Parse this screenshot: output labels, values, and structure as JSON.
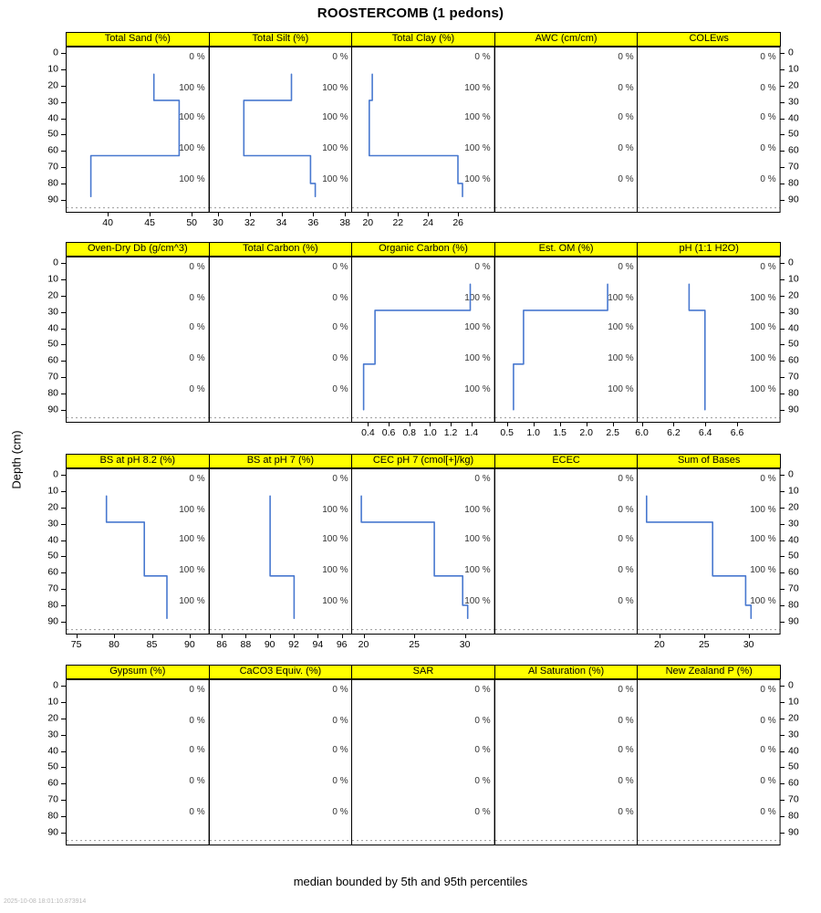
{
  "title": "ROOSTERCOMB (1 pedons)",
  "y_axis_label": "Depth (cm)",
  "caption": "median bounded by 5th and 95th percentiles",
  "timestamp": "2025-10-08 18:01:10.873914",
  "colors": {
    "strip_bg": "#FFFF00",
    "line": "#4878CF",
    "border": "#000000",
    "annotation": "#333333",
    "grid_dashed": "#999999"
  },
  "depth_ticks": [
    0,
    10,
    20,
    30,
    40,
    50,
    60,
    70,
    80,
    90
  ],
  "chart_data": {
    "type": "line",
    "subtype": "step-depth-profile",
    "layout": {
      "rows": 4,
      "cols": 5
    },
    "ylabel": "Depth (cm)",
    "depth_range": [
      -4,
      98
    ],
    "annotation_depths": [
      2,
      21,
      39,
      58,
      77
    ],
    "panels": [
      {
        "title": "Total Sand (%)",
        "xlim": [
          35,
          52
        ],
        "xticks": [
          "40",
          "45",
          "50"
        ],
        "annotations": [
          "0 %",
          "100 %",
          "100 %",
          "100 %",
          "100 %"
        ],
        "line": [
          [
            45.5,
            13
          ],
          [
            45.5,
            29
          ],
          [
            48.5,
            29
          ],
          [
            48.5,
            63
          ],
          [
            38,
            63
          ],
          [
            38,
            88
          ]
        ]
      },
      {
        "title": "Total Silt (%)",
        "xlim": [
          29.4,
          38.4
        ],
        "xticks": [
          "30",
          "32",
          "34",
          "36",
          "38"
        ],
        "annotations": [
          "0 %",
          "100 %",
          "100 %",
          "100 %",
          "100 %"
        ],
        "line": [
          [
            34.6,
            13
          ],
          [
            34.6,
            29
          ],
          [
            31.6,
            29
          ],
          [
            31.6,
            63
          ],
          [
            35.8,
            63
          ],
          [
            35.8,
            80
          ],
          [
            36.1,
            80
          ],
          [
            36.1,
            88
          ]
        ]
      },
      {
        "title": "Total Clay (%)",
        "xlim": [
          18.9,
          28.4
        ],
        "xticks": [
          "20",
          "22",
          "24",
          "26"
        ],
        "annotations": [
          "0 %",
          "100 %",
          "100 %",
          "100 %",
          "100 %"
        ],
        "line": [
          [
            20.3,
            13
          ],
          [
            20.3,
            29
          ],
          [
            20.1,
            29
          ],
          [
            20.1,
            63
          ],
          [
            26,
            63
          ],
          [
            26,
            80
          ],
          [
            26.3,
            80
          ],
          [
            26.3,
            88
          ]
        ]
      },
      {
        "title": "AWC (cm/cm)",
        "xlim": [
          0,
          1
        ],
        "xticks": [],
        "annotations": [
          "0 %",
          "0 %",
          "0 %",
          "0 %",
          "0 %"
        ],
        "line": null
      },
      {
        "title": "COLEws",
        "xlim": [
          0,
          1
        ],
        "xticks": [],
        "annotations": [
          "0 %",
          "0 %",
          "0 %",
          "0 %",
          "0 %"
        ],
        "line": null
      },
      {
        "title": "Oven-Dry Db (g/cm^3)",
        "xlim": [
          0,
          1
        ],
        "xticks": [],
        "annotations": [
          "0 %",
          "0 %",
          "0 %",
          "0 %",
          "0 %"
        ],
        "line": null
      },
      {
        "title": "Total Carbon (%)",
        "xlim": [
          0,
          1
        ],
        "xticks": [],
        "annotations": [
          "0 %",
          "0 %",
          "0 %",
          "0 %",
          "0 %"
        ],
        "line": null
      },
      {
        "title": "Organic Carbon (%)",
        "xlim": [
          0.24,
          1.62
        ],
        "xticks": [
          "0.4",
          "0.6",
          "0.8",
          "1.0",
          "1.2",
          "1.4"
        ],
        "annotations": [
          "0 %",
          "100 %",
          "100 %",
          "100 %",
          "100 %"
        ],
        "line": [
          [
            1.39,
            13
          ],
          [
            1.39,
            29
          ],
          [
            0.47,
            29
          ],
          [
            0.47,
            62
          ],
          [
            0.36,
            62
          ],
          [
            0.36,
            90
          ]
        ]
      },
      {
        "title": "Est. OM (%)",
        "xlim": [
          0.26,
          2.96
        ],
        "xticks": [
          "0.5",
          "1.0",
          "1.5",
          "2.0",
          "2.5"
        ],
        "annotations": [
          "0 %",
          "100 %",
          "100 %",
          "100 %",
          "100 %"
        ],
        "line": [
          [
            2.4,
            13
          ],
          [
            2.4,
            29
          ],
          [
            0.81,
            29
          ],
          [
            0.81,
            62
          ],
          [
            0.62,
            62
          ],
          [
            0.62,
            90
          ]
        ]
      },
      {
        "title": "pH (1:1 H2O)",
        "xlim": [
          5.97,
          6.87
        ],
        "xticks": [
          "6.0",
          "6.2",
          "6.4",
          "6.6"
        ],
        "annotations": [
          "0 %",
          "100 %",
          "100 %",
          "100 %",
          "100 %"
        ],
        "line": [
          [
            6.3,
            13
          ],
          [
            6.3,
            29
          ],
          [
            6.4,
            29
          ],
          [
            6.4,
            90
          ]
        ]
      },
      {
        "title": "BS at pH 8.2 (%)",
        "xlim": [
          73.6,
          92.5
        ],
        "xticks": [
          "75",
          "80",
          "85",
          "90"
        ],
        "annotations": [
          "0 %",
          "100 %",
          "100 %",
          "100 %",
          "100 %"
        ],
        "line": [
          [
            79,
            13
          ],
          [
            79,
            29
          ],
          [
            84,
            29
          ],
          [
            84,
            62
          ],
          [
            87,
            62
          ],
          [
            87,
            88
          ]
        ]
      },
      {
        "title": "BS at pH 7 (%)",
        "xlim": [
          84.9,
          96.8
        ],
        "xticks": [
          "86",
          "88",
          "90",
          "92",
          "94",
          "96"
        ],
        "annotations": [
          "0 %",
          "100 %",
          "100 %",
          "100 %",
          "100 %"
        ],
        "line": [
          [
            90,
            13
          ],
          [
            90,
            62
          ],
          [
            92,
            62
          ],
          [
            92,
            88
          ]
        ]
      },
      {
        "title": "CEC pH 7 (cmol[+]/kg)",
        "xlim": [
          18.8,
          32.9
        ],
        "xticks": [
          "20",
          "25",
          "30"
        ],
        "annotations": [
          "0 %",
          "100 %",
          "100 %",
          "100 %",
          "100 %"
        ],
        "line": [
          [
            19.8,
            13
          ],
          [
            19.8,
            29
          ],
          [
            27,
            29
          ],
          [
            27,
            62
          ],
          [
            29.8,
            62
          ],
          [
            29.8,
            80
          ],
          [
            30.3,
            80
          ],
          [
            30.3,
            88
          ]
        ]
      },
      {
        "title": "ECEC",
        "xlim": [
          0,
          1
        ],
        "xticks": [],
        "annotations": [
          "0 %",
          "0 %",
          "0 %",
          "0 %",
          "0 %"
        ],
        "line": null
      },
      {
        "title": "Sum of Bases",
        "xlim": [
          17.5,
          33.5
        ],
        "xticks": [
          "20",
          "25",
          "30"
        ],
        "annotations": [
          "0 %",
          "100 %",
          "100 %",
          "100 %",
          "100 %"
        ],
        "line": [
          [
            18.6,
            13
          ],
          [
            18.6,
            29
          ],
          [
            26,
            29
          ],
          [
            26,
            62
          ],
          [
            29.7,
            62
          ],
          [
            29.7,
            80
          ],
          [
            30.3,
            80
          ],
          [
            30.3,
            88
          ]
        ]
      },
      {
        "title": "Gypsum (%)",
        "xlim": [
          0,
          1
        ],
        "xticks": [],
        "annotations": [
          "0 %",
          "0 %",
          "0 %",
          "0 %",
          "0 %"
        ],
        "line": null
      },
      {
        "title": "CaCO3 Equiv. (%)",
        "xlim": [
          0,
          1
        ],
        "xticks": [],
        "annotations": [
          "0 %",
          "0 %",
          "0 %",
          "0 %",
          "0 %"
        ],
        "line": null
      },
      {
        "title": "SAR",
        "xlim": [
          0,
          1
        ],
        "xticks": [],
        "annotations": [
          "0 %",
          "0 %",
          "0 %",
          "0 %",
          "0 %"
        ],
        "line": null
      },
      {
        "title": "Al Saturation (%)",
        "xlim": [
          0,
          1
        ],
        "xticks": [],
        "annotations": [
          "0 %",
          "0 %",
          "0 %",
          "0 %",
          "0 %"
        ],
        "line": null
      },
      {
        "title": "New Zealand P (%)",
        "xlim": [
          0,
          1
        ],
        "xticks": [],
        "annotations": [
          "0 %",
          "0 %",
          "0 %",
          "0 %",
          "0 %"
        ],
        "line": null
      }
    ]
  }
}
